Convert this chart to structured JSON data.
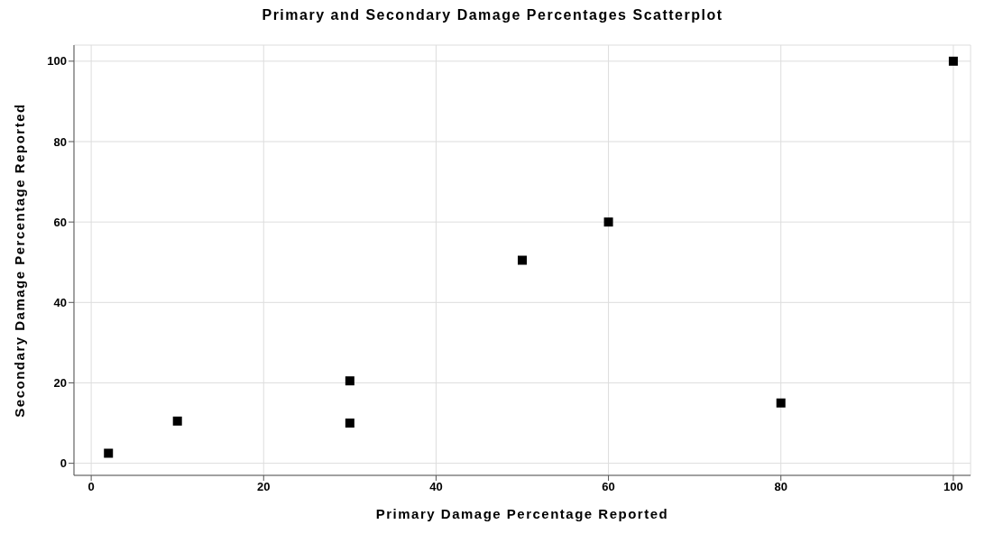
{
  "chart_data": {
    "type": "scatter",
    "title": "Primary and Secondary Damage Percentages Scatterplot",
    "xlabel": "Primary Damage Percentage Reported",
    "ylabel": "Secondary Damage Percentage Reported",
    "x": [
      2,
      10,
      30,
      30,
      50,
      60,
      80,
      100
    ],
    "series": [
      {
        "color": "#000000",
        "values": [
          2.5,
          10.5,
          20.5,
          10,
          50.5,
          60,
          15,
          100
        ]
      }
    ],
    "xlim": [
      -2,
      102
    ],
    "xticks": [
      0,
      20,
      40,
      60,
      80,
      100
    ],
    "ylim": [
      -3,
      104
    ],
    "yticks": [
      0,
      20,
      40,
      60,
      80,
      100
    ],
    "grid": true,
    "marker": "square"
  }
}
